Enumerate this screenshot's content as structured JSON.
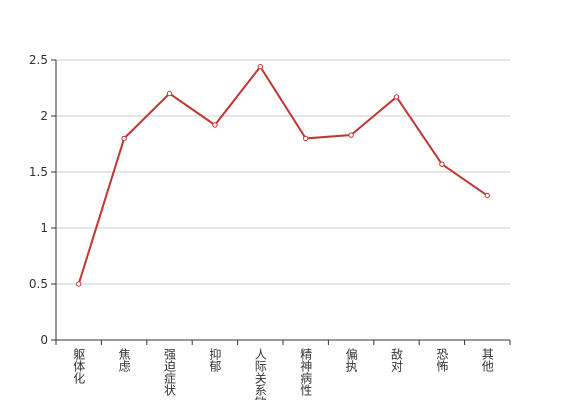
{
  "chart_data": {
    "type": "line",
    "categories": [
      "躯体化",
      "焦虑",
      "强迫症状",
      "抑郁",
      "人际关系敏感",
      "精神病性",
      "偏执",
      "敌对",
      "恐怖",
      "其他"
    ],
    "values": [
      0.5,
      1.8,
      2.2,
      1.92,
      2.44,
      1.8,
      1.83,
      2.17,
      1.57,
      1.29
    ],
    "color": "#c23531",
    "ylim": [
      0,
      2.5
    ],
    "yticks": [
      0,
      0.5,
      1,
      1.5,
      2,
      2.5
    ],
    "grid": true
  }
}
